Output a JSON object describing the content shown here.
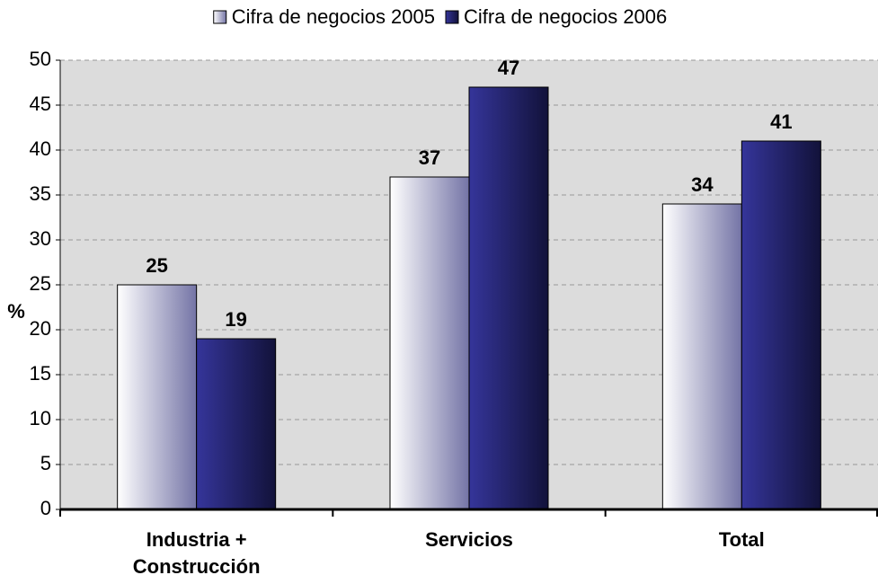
{
  "chart_data": {
    "type": "bar",
    "y_label": "%",
    "categories": [
      "Industria + Construcción",
      "Servicios",
      "Total"
    ],
    "series": [
      {
        "name": "Cifra de negocios 2005",
        "color": "#7474a6",
        "values": [
          25,
          37,
          34
        ]
      },
      {
        "name": "Cifra de negocios 2006",
        "color": "#35359a",
        "values": [
          19,
          47,
          41
        ]
      }
    ],
    "ylim": [
      0,
      50
    ],
    "yticks": [
      0,
      5,
      10,
      15,
      20,
      25,
      30,
      35,
      40,
      45,
      50
    ],
    "grid": true,
    "legend": "top"
  }
}
